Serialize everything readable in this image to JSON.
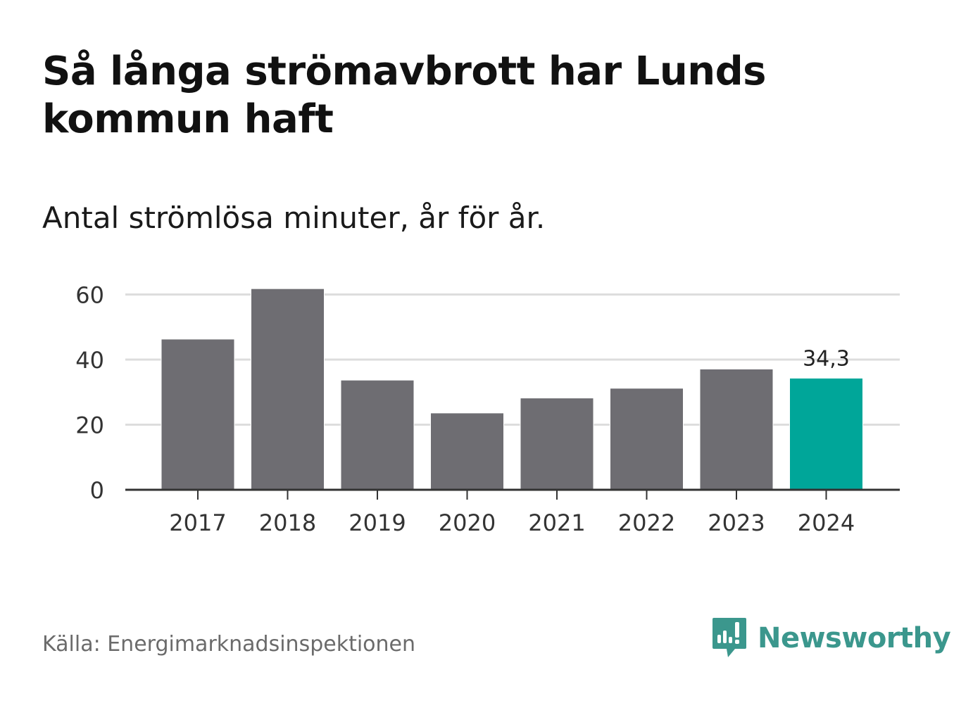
{
  "header": {
    "title": "Så långa strömavbrott har Lunds kommun haft",
    "subtitle": "Antal strömlösa minuter, år för år."
  },
  "footer": {
    "source": "Källa: Energimarknadsinspektionen",
    "brand": "Newsworthy"
  },
  "colors": {
    "bar": "#6e6d72",
    "highlight": "#00a699",
    "grid": "#dddddd",
    "axis": "#333333",
    "brand": "#3b978d"
  },
  "chart_data": {
    "type": "bar",
    "title": "Så långa strömavbrott har Lunds kommun haft",
    "subtitle": "Antal strömlösa minuter, år för år.",
    "xlabel": "",
    "ylabel": "",
    "categories": [
      "2017",
      "2018",
      "2019",
      "2020",
      "2021",
      "2022",
      "2023",
      "2024"
    ],
    "values": [
      46.3,
      61.8,
      33.7,
      23.6,
      28.2,
      31.2,
      37.1,
      34.3
    ],
    "highlight_index": 7,
    "highlight_label": "34,3",
    "ylim": [
      0,
      64
    ],
    "yticks": [
      0,
      20,
      40,
      60
    ],
    "grid": true
  }
}
